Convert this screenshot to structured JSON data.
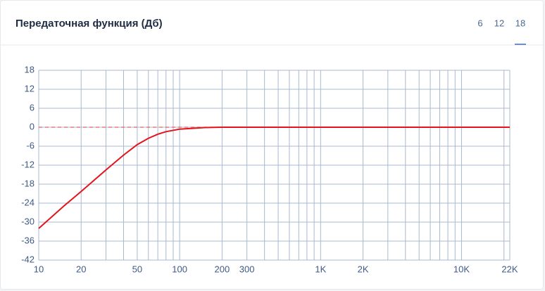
{
  "header": {
    "title": "Передаточная функция (Дб)",
    "tabs": [
      "6",
      "12",
      "18"
    ],
    "active_tab": 2
  },
  "chart_data": {
    "type": "line",
    "log_x": true,
    "grid": true,
    "x": [
      10,
      15,
      20,
      30,
      40,
      50,
      60,
      70,
      80,
      100,
      150,
      200,
      500,
      22000
    ],
    "series": [
      {
        "color": "#e3141b",
        "values": [
          -32,
          -25,
          -20.3,
          -13.5,
          -8.8,
          -5.5,
          -3.5,
          -2.2,
          -1.4,
          -0.6,
          -0.1,
          0,
          0,
          0
        ]
      }
    ],
    "reference_line": {
      "value": 0,
      "color": "#e06060"
    },
    "xlim": [
      10,
      22000
    ],
    "xticks": [
      10,
      20,
      50,
      100,
      200,
      300,
      {
        "value": 1000,
        "label": "1K"
      },
      {
        "value": 2000,
        "label": "2K"
      },
      {
        "value": 10000,
        "label": "10K"
      },
      {
        "value": 22000,
        "label": "22K"
      }
    ],
    "xminor": [
      30,
      40,
      60,
      70,
      80,
      90,
      400,
      500,
      600,
      700,
      800,
      900,
      3000,
      4000,
      5000,
      6000,
      7000,
      8000,
      9000,
      20000
    ],
    "ylim": [
      -42,
      18
    ],
    "yticks": [
      -42,
      -36,
      -30,
      -24,
      -18,
      -12,
      -6,
      0,
      6,
      12,
      18
    ]
  }
}
